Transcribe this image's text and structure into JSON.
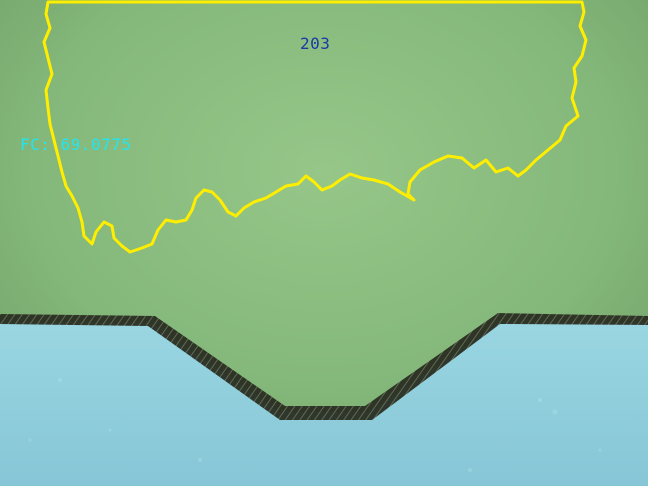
{
  "image": {
    "overlay": {
      "region_id": "203",
      "fc_value": "FC: 69.0775",
      "contour_color": "#ffee00",
      "fc_text_color": "#22e6ee",
      "id_text_color": "#1a3aa6"
    },
    "colors": {
      "green_region": "#86b97a",
      "blue_region": "#8fd0dc",
      "groove_edge": "#2a2e22"
    }
  }
}
